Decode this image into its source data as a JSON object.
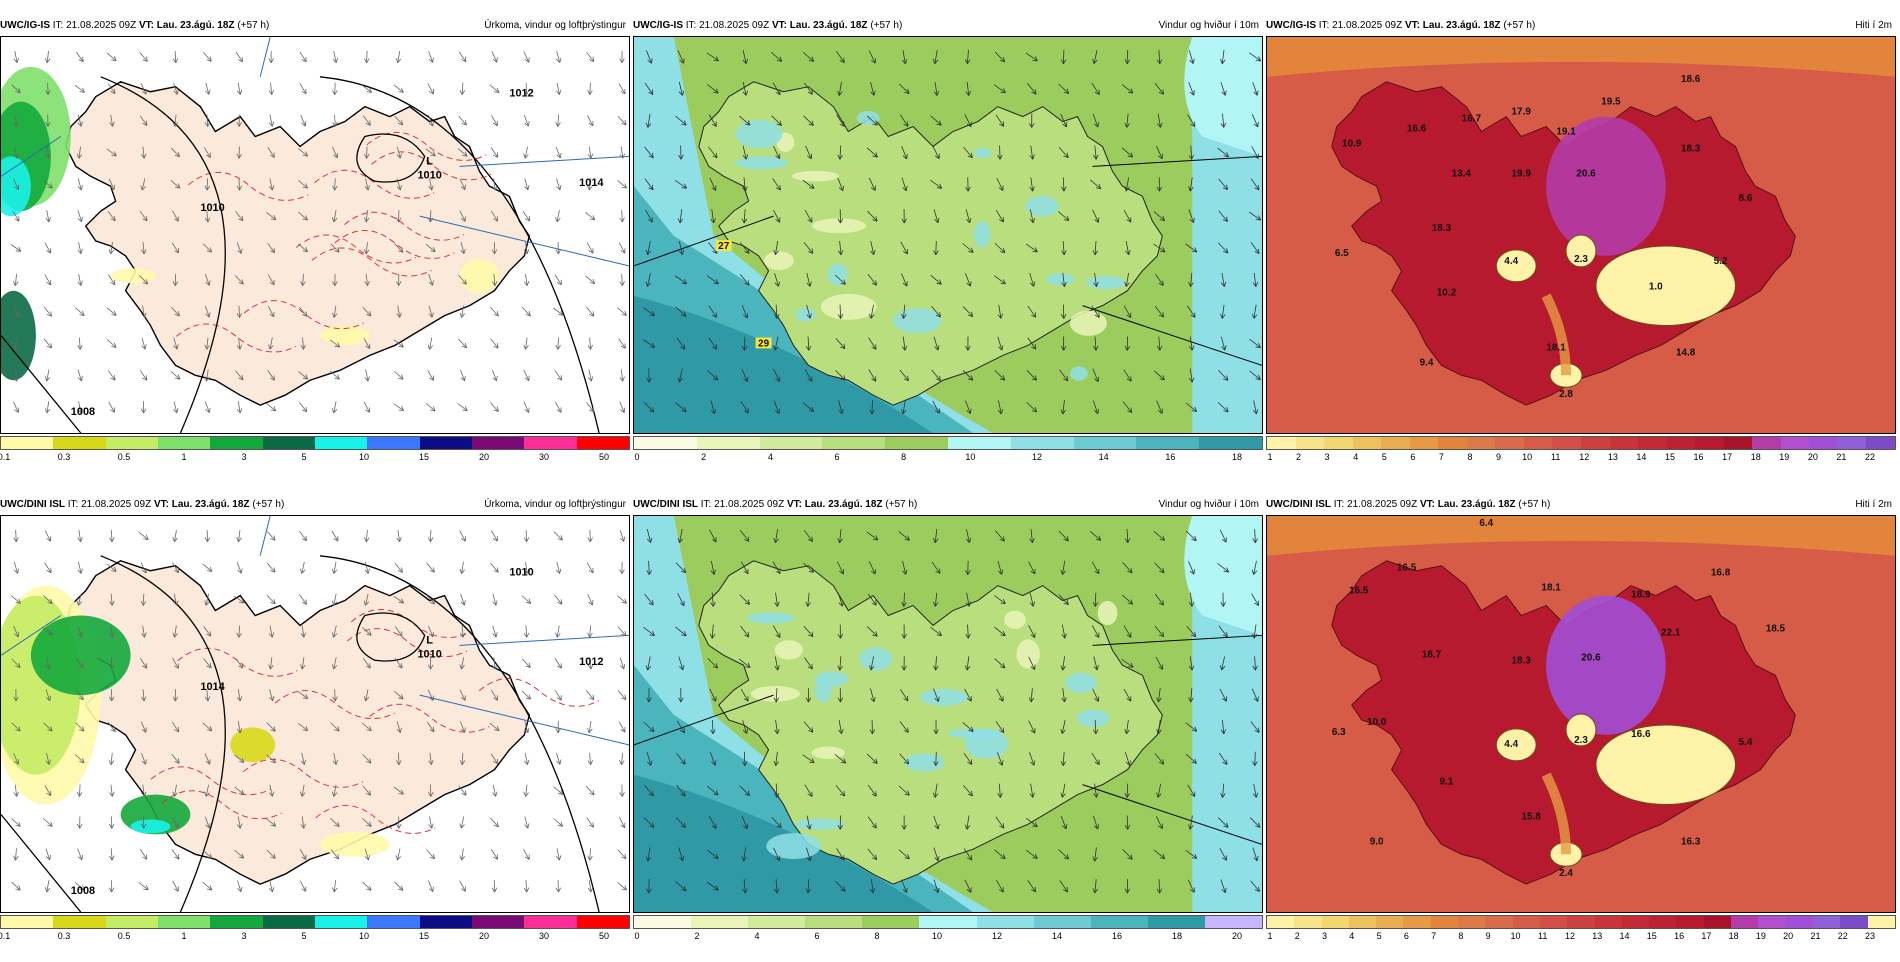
{
  "panels": [
    {
      "model": "UWC/IG-IS",
      "it": " IT: 21.08.2025 09Z ",
      "vt": "VT: Lau. 23.ágú. 18Z",
      "lead": " (+57 h)",
      "title": "Úrkoma, vindur og loftþrýstingur",
      "type": "precip",
      "low_label": "L",
      "low_value": "1010",
      "isobar_labels": [
        "1012",
        "1014",
        "1010",
        "1008"
      ],
      "cbar_ticks": [
        "0.1",
        "0.3",
        "0.5",
        "1",
        "3",
        "5",
        "10",
        "15",
        "20",
        "30",
        "50"
      ]
    },
    {
      "model": "UWC/IG-IS",
      "it": " IT: 21.08.2025 09Z ",
      "vt": "VT: Lau. 23.ágú. 18Z",
      "lead": " (+57 h)",
      "title": "Vindur og hviður í 10m",
      "type": "wind",
      "gust_labels": [
        "27",
        "29"
      ],
      "cbar_ticks": [
        "0",
        "2",
        "4",
        "6",
        "8",
        "10",
        "12",
        "14",
        "16",
        "18"
      ]
    },
    {
      "model": "UWC/IG-IS",
      "it": " IT: 21.08.2025 09Z ",
      "vt": "VT: Lau. 23.ágú. 18Z",
      "lead": " (+57 h)",
      "title": "Hiti í 2m",
      "type": "temp",
      "values": [
        "10.9",
        "16.6",
        "16.7",
        "17.9",
        "19.1",
        "19.5",
        "18.6",
        "18.3",
        "8.6",
        "13.4",
        "19.9",
        "20.6",
        "18.3",
        "6.5",
        "4.4",
        "2.3",
        "5.2",
        "1.0",
        "10.2",
        "18.1",
        "14.8",
        "9.4",
        "2.8"
      ],
      "cbar_ticks": [
        "1",
        "2",
        "3",
        "4",
        "5",
        "6",
        "7",
        "8",
        "9",
        "10",
        "11",
        "12",
        "13",
        "14",
        "15",
        "16",
        "17",
        "18",
        "19",
        "20",
        "21",
        "22"
      ]
    },
    {
      "model": "UWC/DINI ISL",
      "it": " IT: 21.08.2025 09Z ",
      "vt": "VT: Lau. 23.ágú. 18Z",
      "lead": " (+57 h)",
      "title": "Úrkoma, vindur og loftþrýstingur",
      "type": "precip",
      "low_label": "L",
      "low_value": "1010",
      "isobar_labels": [
        "1010",
        "1012",
        "1014",
        "1008"
      ],
      "cbar_ticks": [
        "0.1",
        "0.3",
        "0.5",
        "1",
        "3",
        "5",
        "10",
        "15",
        "20",
        "30",
        "50"
      ]
    },
    {
      "model": "UWC/DINI ISL",
      "it": " IT: 21.08.2025 09Z ",
      "vt": "VT: Lau. 23.ágú. 18Z",
      "lead": " (+57 h)",
      "title": "Vindur og hviður í 10m",
      "type": "wind",
      "gust_labels": [],
      "cbar_ticks": [
        "0",
        "2",
        "4",
        "6",
        "8",
        "10",
        "12",
        "14",
        "16",
        "18",
        "20"
      ]
    },
    {
      "model": "UWC/DINI ISL",
      "it": " IT: 21.08.2025 09Z ",
      "vt": "VT: Lau. 23.ágú. 18Z",
      "lead": " (+57 h)",
      "title": "Hiti í 2m",
      "type": "temp",
      "values": [
        "6.4",
        "16.5",
        "16.5",
        "18.1",
        "18.9",
        "16.8",
        "18.5",
        "18.7",
        "18.3",
        "20.6",
        "22.1",
        "6.3",
        "10.0",
        "4.4",
        "2.3",
        "16.6",
        "5.4",
        "9.1",
        "15.8",
        "9.0",
        "16.3",
        "2.4"
      ],
      "cbar_ticks": [
        "1",
        "2",
        "3",
        "4",
        "5",
        "6",
        "7",
        "8",
        "9",
        "10",
        "11",
        "12",
        "13",
        "14",
        "15",
        "16",
        "17",
        "18",
        "19",
        "20",
        "21",
        "22",
        "23"
      ]
    }
  ],
  "colors": {
    "precip": [
      "#fff9a8",
      "#d8d81a",
      "#c4ec64",
      "#7fe06a",
      "#14a83c",
      "#0b6a46",
      "#19f2e8",
      "#3b77ff",
      "#0c0c84",
      "#7a0b75",
      "#ff2d95",
      "#ff0000"
    ],
    "wind": [
      "#fbfbe4",
      "#e9f4b8",
      "#d2ea9b",
      "#b9de7d",
      "#9ccc5e",
      "#b2f5f5",
      "#8fdfe6",
      "#6ccbd3",
      "#4bb5bd",
      "#2f9aa5",
      "#c8b5ff",
      "#a88ef0"
    ],
    "temp": [
      "#fdf2a8",
      "#f7e48a",
      "#f2d770",
      "#edc25c",
      "#e8ad4e",
      "#e69a45",
      "#e2843c",
      "#de7a45",
      "#d96b4a",
      "#d65c48",
      "#d44f45",
      "#cc4040",
      "#c8343a",
      "#c32a36",
      "#bd2232",
      "#b71a2e",
      "#a8122a",
      "#b43ca8",
      "#b24fd0",
      "#a14fd6",
      "#9060d8",
      "#7b4bc8"
    ]
  }
}
